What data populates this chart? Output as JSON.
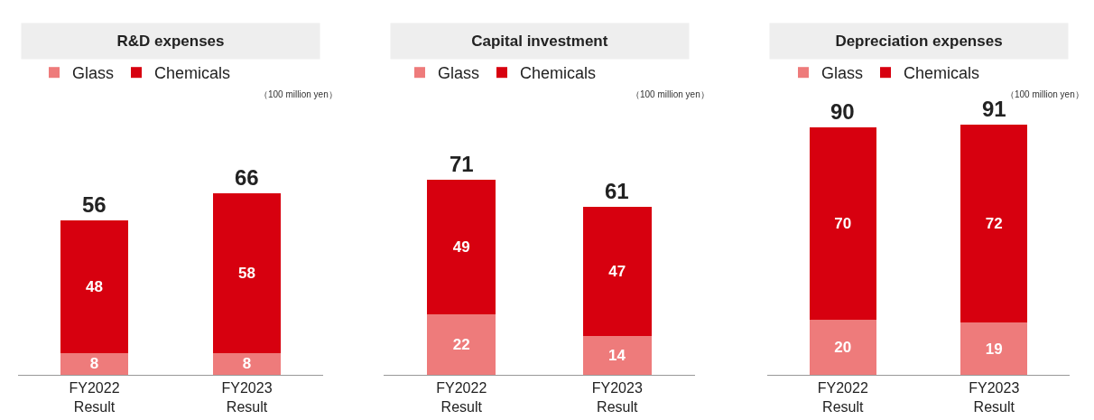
{
  "chart_data": [
    {
      "type": "bar",
      "title": "R&D expenses",
      "categories": [
        "FY2022\nResult",
        "FY2023\nResult"
      ],
      "stacked": true,
      "data_labels": true,
      "totals": [
        "56",
        "66"
      ],
      "tick_labels": "x",
      "legend": "top left",
      "annotations": [
        "（100 million yen）"
      ],
      "series": [
        {
          "name": "Glass",
          "color": "#ee7b7b",
          "values": [
            8,
            8
          ]
        },
        {
          "name": "Chemicals",
          "color": "#d7000f",
          "values": [
            48,
            58
          ]
        }
      ]
    },
    {
      "type": "bar",
      "title": "Capital investment",
      "categories": [
        "FY2022\nResult",
        "FY2023\nResult"
      ],
      "stacked": true,
      "data_labels": true,
      "totals": [
        "71",
        "61"
      ],
      "tick_labels": "x",
      "legend": "top left",
      "annotations": [
        "（100 million yen）"
      ],
      "series": [
        {
          "name": "Glass",
          "color": "#ee7b7b",
          "values": [
            22,
            14
          ]
        },
        {
          "name": "Chemicals",
          "color": "#d7000f",
          "values": [
            49,
            47
          ]
        }
      ]
    },
    {
      "type": "bar",
      "title": "Depreciation expenses",
      "categories": [
        "FY2022\nResult",
        "FY2023\nResult"
      ],
      "stacked": true,
      "data_labels": true,
      "totals": [
        "90",
        "91"
      ],
      "tick_labels": "x",
      "legend": "top left",
      "annotations": [
        "（100 million yen）"
      ],
      "series": [
        {
          "name": "Glass",
          "color": "#ee7b7b",
          "values": [
            20,
            19
          ]
        },
        {
          "name": "Chemicals",
          "color": "#d7000f",
          "values": [
            70,
            72
          ]
        }
      ]
    }
  ]
}
